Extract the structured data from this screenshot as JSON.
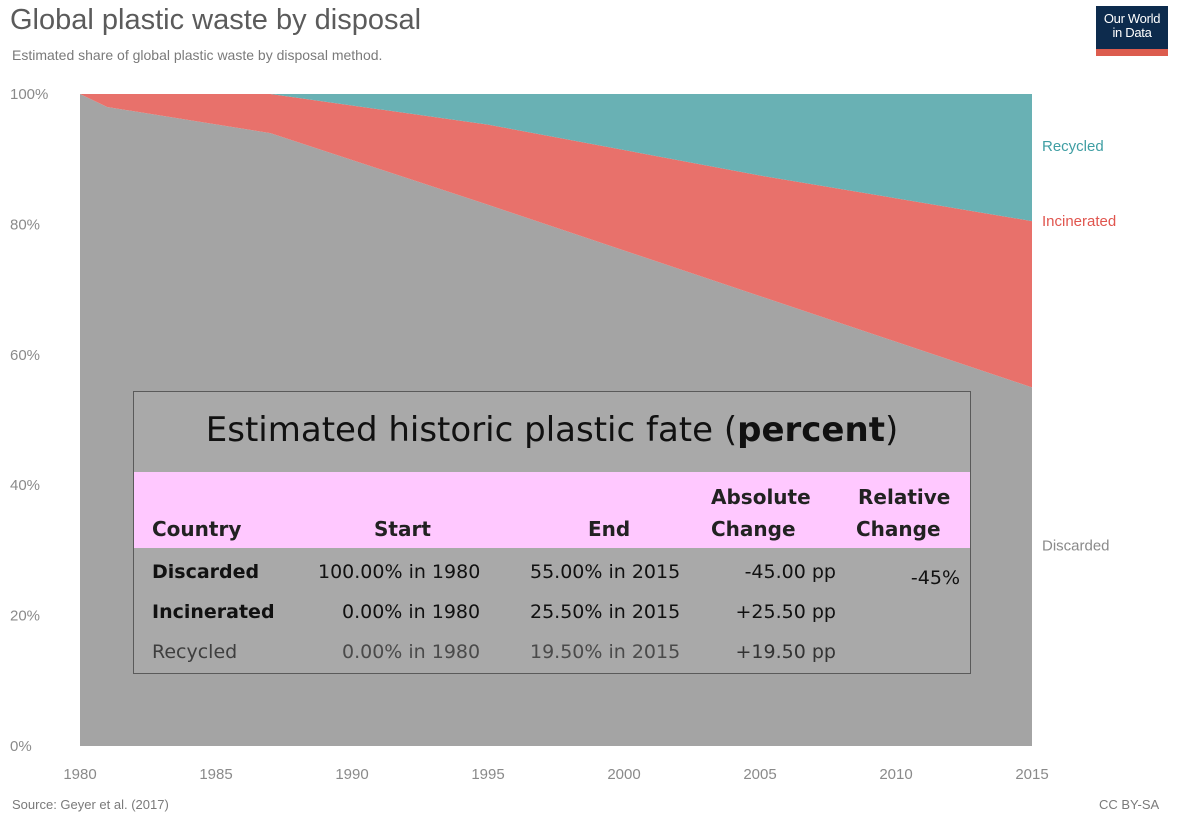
{
  "header": {
    "title": "Global plastic waste by disposal",
    "subtitle": "Estimated share of global plastic waste by disposal method.",
    "logo_line1": "Our World",
    "logo_line2": "in Data"
  },
  "footer": {
    "source": "Source: Geyer et al. (2017)",
    "license": "CC BY-SA"
  },
  "colors": {
    "discarded": "#a4a4a4",
    "incinerated": "#e8716b",
    "recycled": "#69b1b4",
    "recycled_label": "#3f9ea3",
    "incinerated_label": "#e0554e",
    "discarded_label": "#8a8a8a"
  },
  "chart_data": {
    "type": "area",
    "stacked": true,
    "title": "Global plastic waste by disposal",
    "subtitle": "Estimated share of global plastic waste by disposal method.",
    "x": [
      1980,
      1981,
      1987,
      1995,
      2005,
      2015
    ],
    "series": [
      {
        "name": "Discarded",
        "values": [
          100,
          98,
          94,
          83,
          69,
          55
        ]
      },
      {
        "name": "Incinerated",
        "values": [
          0,
          2,
          6,
          12.3,
          18.5,
          25.5
        ]
      },
      {
        "name": "Recycled",
        "values": [
          0,
          0,
          0,
          4.7,
          12.5,
          19.5
        ]
      }
    ],
    "xticks": [
      "1980",
      "1985",
      "1990",
      "1995",
      "2000",
      "2005",
      "2010",
      "2015"
    ],
    "xtick_values": [
      1980,
      1985,
      1990,
      1995,
      2000,
      2005,
      2010,
      2015
    ],
    "yticks": [
      "0%",
      "20%",
      "40%",
      "60%",
      "80%",
      "100%"
    ],
    "ytick_values": [
      0,
      20,
      40,
      60,
      80,
      100
    ],
    "xlim": [
      1980,
      2015
    ],
    "ylim": [
      0,
      100
    ],
    "grid": false
  },
  "overlay": {
    "title_prefix": "Estimated historic plastic fate (",
    "title_bold": "percent",
    "title_suffix": ")",
    "headers": {
      "country": "Country",
      "start": "Start",
      "end": "End",
      "abs_line1": "Absolute",
      "abs_line2": "Change",
      "rel_line1": "Relative",
      "rel_line2": "Change"
    },
    "rows": [
      {
        "country": "Discarded",
        "start": "100.00% in 1980",
        "end": "55.00% in 2015",
        "abs": "-45.00 pp",
        "rel": "-45%"
      },
      {
        "country": "Incinerated",
        "start": "0.00% in 1980",
        "end": "25.50% in 2015",
        "abs": "+25.50 pp",
        "rel": ""
      },
      {
        "country": "Recycled",
        "start": "0.00% in 1980",
        "end": "19.50% in 2015",
        "abs": "+19.50 pp",
        "rel": ""
      }
    ]
  }
}
